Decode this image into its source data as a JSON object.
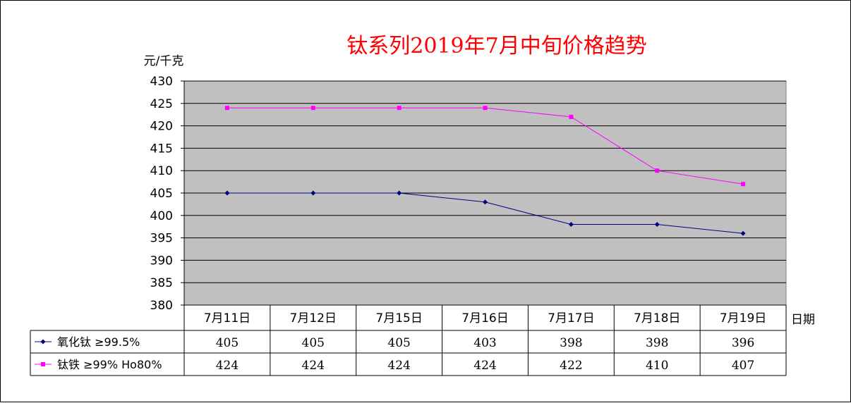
{
  "chart_data": {
    "type": "line",
    "title": "钛系列2019年7月中旬价格趋势",
    "ylabel": "元/千克",
    "xlabel": "日期",
    "ylim": [
      380,
      430
    ],
    "yticks": [
      430,
      425,
      420,
      415,
      410,
      405,
      400,
      395,
      390,
      385,
      380
    ],
    "categories": [
      "7月11日",
      "7月12日",
      "7月15日",
      "7月16日",
      "7月17日",
      "7月18日",
      "7月19日"
    ],
    "series": [
      {
        "name": "氧化钛 ≥99.5%",
        "values": [
          405,
          405,
          405,
          403,
          398,
          398,
          396
        ],
        "color": "#000080",
        "marker": "diamond"
      },
      {
        "name": "钛铁 ≥99% Ho80%",
        "values": [
          424,
          424,
          424,
          424,
          422,
          410,
          407
        ],
        "color": "#ff00ff",
        "marker": "square"
      }
    ],
    "plot_background": "#c0c0c0",
    "grid": true,
    "data_table": true
  }
}
